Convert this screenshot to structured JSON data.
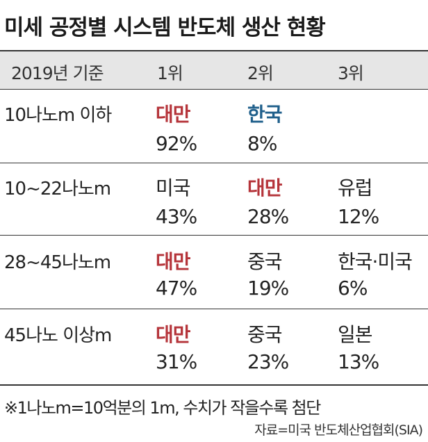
{
  "title": "미세 공정별 시스템 반도체 생산 현황",
  "chart_data": {
    "type": "table",
    "columns": [
      "2019년 기준",
      "1위",
      "2위",
      "3위"
    ],
    "rows": [
      {
        "label": "10나노m 이하",
        "ranks": [
          {
            "country": "대만",
            "share": "92%",
            "color": "#b5343a",
            "bold": true
          },
          {
            "country": "한국",
            "share": "8%",
            "color": "#1f5f8b",
            "bold": true
          }
        ]
      },
      {
        "label": "10~22나노m",
        "ranks": [
          {
            "country": "미국",
            "share": "43%",
            "color": "#222222",
            "bold": false
          },
          {
            "country": "대만",
            "share": "28%",
            "color": "#b5343a",
            "bold": true
          },
          {
            "country": "유럽",
            "share": "12%",
            "color": "#222222",
            "bold": false
          }
        ]
      },
      {
        "label": "28~45나노m",
        "ranks": [
          {
            "country": "대만",
            "share": "47%",
            "color": "#b5343a",
            "bold": true
          },
          {
            "country": "중국",
            "share": "19%",
            "color": "#222222",
            "bold": false
          },
          {
            "country": "한국·미국",
            "share": "6%",
            "color": "#222222",
            "bold": false
          }
        ]
      },
      {
        "label": "45나노 이상m",
        "ranks": [
          {
            "country": "대만",
            "share": "31%",
            "color": "#b5343a",
            "bold": true
          },
          {
            "country": "중국",
            "share": "23%",
            "color": "#222222",
            "bold": false
          },
          {
            "country": "일본",
            "share": "13%",
            "color": "#222222",
            "bold": false
          }
        ]
      }
    ]
  },
  "note": "※1나노m=10억분의 1m, 수치가 작을수록 첨단",
  "source": "자료=미국 반도체산업협회(SIA)",
  "colors": {
    "taiwan": "#b5343a",
    "korea": "#1f5f8b",
    "header_bg": "#e6e6e6",
    "text": "#222222"
  }
}
